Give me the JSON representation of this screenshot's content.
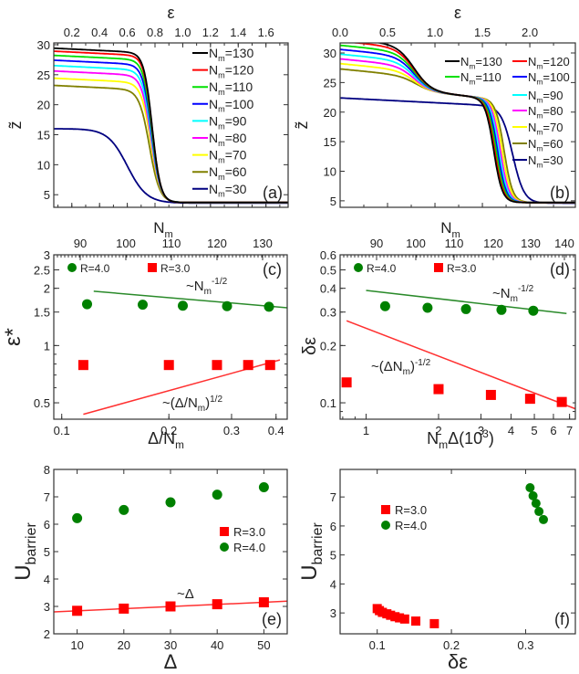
{
  "figure": {
    "panels": [
      "a",
      "b",
      "c",
      "d",
      "e",
      "f"
    ]
  },
  "chart_data": [
    {
      "id": "a",
      "type": "line",
      "panel_label": "(a)",
      "xlabel": "ε",
      "ylabel": "z̃",
      "xaxis_position": "top",
      "xlim": [
        0.07,
        1.76
      ],
      "ylim": [
        2.9,
        30.3
      ],
      "xticks": [
        0.2,
        0.4,
        0.6,
        0.8,
        1.0,
        1.2,
        1.4,
        1.6
      ],
      "xtick_labels": [
        "0.2",
        "0.4",
        "0.6",
        "0.8",
        "1.0",
        "1.2",
        "1.4",
        "1.6"
      ],
      "yticks": [
        5,
        10,
        15,
        20,
        25,
        30
      ],
      "ytick_labels": [
        "5",
        "10",
        "15",
        "20",
        "25",
        "30"
      ],
      "legend_position": "right",
      "series": [
        {
          "name": "N_m=130",
          "label_main": "N",
          "label_sub": "m",
          "label_rest": "=130",
          "color": "#000000",
          "plateau": 29.5,
          "low": 3.7,
          "center": 0.78,
          "width": 0.03
        },
        {
          "name": "N_m=120",
          "label_main": "N",
          "label_sub": "m",
          "label_rest": "=120",
          "color": "#ff0000",
          "plateau": 29.0,
          "low": 3.7,
          "center": 0.78,
          "width": 0.03
        },
        {
          "name": "N_m=110",
          "label_main": "N",
          "label_sub": "m",
          "label_rest": "=110",
          "color": "#00e000",
          "plateau": 28.3,
          "low": 3.7,
          "center": 0.778,
          "width": 0.031
        },
        {
          "name": "N_m=100",
          "label_main": "N",
          "label_sub": "m",
          "label_rest": "=100",
          "color": "#0000ff",
          "plateau": 27.5,
          "low": 3.7,
          "center": 0.776,
          "width": 0.032
        },
        {
          "name": "N_m=90",
          "label_main": "N",
          "label_sub": "m",
          "label_rest": "=90",
          "color": "#00ffff",
          "plateau": 26.6,
          "low": 3.7,
          "center": 0.774,
          "width": 0.033
        },
        {
          "name": "N_m=80",
          "label_main": "N",
          "label_sub": "m",
          "label_rest": "=80",
          "color": "#ff00ff",
          "plateau": 25.7,
          "low": 3.7,
          "center": 0.772,
          "width": 0.034
        },
        {
          "name": "N_m=70",
          "label_main": "N",
          "label_sub": "m",
          "label_rest": "=70",
          "color": "#ffff00",
          "plateau": 24.5,
          "low": 3.7,
          "center": 0.77,
          "width": 0.035
        },
        {
          "name": "N_m=60",
          "label_main": "N",
          "label_sub": "m",
          "label_rest": "=60",
          "color": "#808000",
          "plateau": 23.3,
          "low": 3.7,
          "center": 0.76,
          "width": 0.037
        },
        {
          "name": "N_m=30",
          "label_main": "N",
          "label_sub": "m",
          "label_rest": "=30",
          "color": "#000080",
          "plateau": 16.0,
          "low": 3.6,
          "center": 0.6,
          "width": 0.07
        }
      ]
    },
    {
      "id": "b",
      "type": "line",
      "panel_label": "(b)",
      "xlabel": "ε",
      "ylabel": "z̃",
      "xaxis_position": "top",
      "xlim": [
        0.0,
        2.48
      ],
      "ylim": [
        3.9,
        31.7
      ],
      "xticks": [
        0.0,
        0.5,
        1.0,
        1.5,
        2.0
      ],
      "xtick_labels": [
        "0.0",
        "0.5",
        "1.0",
        "1.5",
        "2.0"
      ],
      "yticks": [
        5,
        10,
        15,
        20,
        25,
        30
      ],
      "ytick_labels": [
        "5",
        "10",
        "15",
        "20",
        "25",
        "30"
      ],
      "legend_position": "right",
      "series": [
        {
          "name": "N_m=130",
          "label_main": "N",
          "label_sub": "m",
          "label_rest": "=130",
          "color": "#000000",
          "plateau": 31.0,
          "mid": 23.3,
          "low": 4.7,
          "c1": 0.78,
          "c2": 1.62
        },
        {
          "name": "N_m=120",
          "label_main": "N",
          "label_sub": "m",
          "label_rest": "=120",
          "color": "#ff0000",
          "plateau": 30.5,
          "mid": 23.3,
          "low": 4.7,
          "c1": 0.78,
          "c2": 1.63
        },
        {
          "name": "N_m=110",
          "label_main": "N",
          "label_sub": "m",
          "label_rest": "=110",
          "color": "#00e000",
          "plateau": 29.8,
          "mid": 23.3,
          "low": 4.7,
          "c1": 0.78,
          "c2": 1.645
        },
        {
          "name": "N_m=100",
          "label_main": "N",
          "label_sub": "m",
          "label_rest": "=100",
          "color": "#0000ff",
          "plateau": 29.1,
          "mid": 23.3,
          "low": 4.7,
          "c1": 0.78,
          "c2": 1.66
        },
        {
          "name": "N_m=90",
          "label_main": "N",
          "label_sub": "m",
          "label_rest": "=90",
          "color": "#00ffff",
          "plateau": 28.3,
          "mid": 23.3,
          "low": 4.7,
          "c1": 0.78,
          "c2": 1.675
        },
        {
          "name": "N_m=80",
          "label_main": "N",
          "label_sub": "m",
          "label_rest": "=80",
          "color": "#ff00ff",
          "plateau": 27.5,
          "mid": 23.3,
          "low": 4.7,
          "c1": 0.78,
          "c2": 1.69
        },
        {
          "name": "N_m=70",
          "label_main": "N",
          "label_sub": "m",
          "label_rest": "=70",
          "color": "#ffff00",
          "plateau": 26.7,
          "mid": 23.3,
          "low": 4.7,
          "c1": 0.78,
          "c2": 1.71
        },
        {
          "name": "N_m=60",
          "label_main": "N",
          "label_sub": "m",
          "label_rest": "=60",
          "color": "#808000",
          "plateau": 25.8,
          "mid": 23.3,
          "low": 4.7,
          "c1": 0.8,
          "c2": 1.73
        },
        {
          "name": "N_m=30",
          "label_main": "N",
          "label_sub": "m",
          "label_rest": "=30",
          "color": "#000080",
          "plateau": 22.4,
          "mid": 22.4,
          "low": 4.6,
          "c1": 0.8,
          "c2": 1.82
        }
      ]
    },
    {
      "id": "c",
      "type": "scatter",
      "panel_label": "(c)",
      "xlabel": "Δ/N_m",
      "ylabel": "ε*",
      "top_xlabel": "N_m",
      "xscale": "log",
      "yscale": "log",
      "xlim": [
        0.095,
        0.43
      ],
      "ylim": [
        0.41,
        3.0
      ],
      "xticks": [
        0.1,
        0.2,
        0.3,
        0.4
      ],
      "xtick_labels": [
        "0.1",
        "0.2",
        "0.3",
        "0.4"
      ],
      "yticks": [
        0.5,
        1,
        1.5,
        2,
        2.5,
        3
      ],
      "ytick_labels": [
        "0.5",
        "1",
        "1.5",
        "2",
        "2.5",
        "3"
      ],
      "top_xticks": [
        90,
        100,
        110,
        120,
        130
      ],
      "legend_position": "top-left",
      "series": [
        {
          "name": "R=4.0",
          "marker": "circle",
          "color": "#008000",
          "top_x": [
            91.5,
            103.7,
            112.5,
            122.2,
            131.4
          ],
          "y": [
            1.65,
            1.64,
            1.62,
            1.61,
            1.6
          ]
        },
        {
          "name": "R=3.0",
          "marker": "square",
          "color": "#ff0000",
          "x": [
            0.115,
            0.2,
            0.273,
            0.334,
            0.385
          ],
          "y": [
            0.79,
            0.79,
            0.79,
            0.79,
            0.79
          ]
        }
      ],
      "fits": [
        {
          "label": "~N_m^-1/2",
          "color": "#2a8a2a",
          "from": [
            0.123,
            1.93
          ],
          "to": [
            0.43,
            1.58
          ]
        },
        {
          "label": "~(Δ/N_m)^1/2",
          "color": "#ff3030",
          "from": [
            0.115,
            0.435
          ],
          "to": [
            0.41,
            0.84
          ]
        }
      ],
      "annotations": [
        "~N_m^-1/2",
        "~(Δ/N_m)^1/2"
      ]
    },
    {
      "id": "d",
      "type": "scatter",
      "panel_label": "(d)",
      "xlabel": "N_mΔ(10^3)",
      "ylabel": "δε",
      "top_xlabel": "N_m",
      "xscale": "log",
      "yscale": "log",
      "xlim": [
        0.78,
        7.4
      ],
      "ylim": [
        0.082,
        0.6
      ],
      "xticks": [
        1,
        2,
        3,
        4,
        5,
        6,
        7
      ],
      "xtick_labels": [
        "1",
        "2",
        "3",
        "4",
        "5",
        "6",
        "7"
      ],
      "yticks": [
        0.1,
        0.2,
        0.3,
        0.4,
        0.5,
        0.6
      ],
      "ytick_labels": [
        "0.1",
        "0.2",
        "0.3",
        "0.4",
        "0.5",
        "0.6"
      ],
      "top_xticks": [
        90,
        100,
        110,
        120,
        130,
        140
      ],
      "legend_position": "top-left",
      "series": [
        {
          "name": "R=4.0",
          "marker": "circle",
          "color": "#008000",
          "x": [
            1.2,
            1.8,
            2.6,
            3.65,
            4.95
          ],
          "y": [
            0.322,
            0.316,
            0.311,
            0.308,
            0.305
          ]
        },
        {
          "name": "R=3.0",
          "marker": "square",
          "color": "#ff0000",
          "x": [
            0.83,
            2.0,
            3.3,
            4.8,
            6.5
          ],
          "y": [
            0.128,
            0.118,
            0.11,
            0.105,
            0.101
          ]
        }
      ],
      "fits": [
        {
          "label": "~N_m^-1/2",
          "color": "#2a8a2a",
          "from": [
            1.0,
            0.39
          ],
          "to": [
            6.8,
            0.295
          ]
        },
        {
          "label": "~(ΔN_m)^-1/2",
          "color": "#ff3030",
          "from": [
            0.83,
            0.27
          ],
          "to": [
            7.4,
            0.093
          ]
        }
      ],
      "annotations": [
        "~N_m^-1/2",
        "~(ΔN_m)^-1/2"
      ]
    },
    {
      "id": "e",
      "type": "scatter",
      "panel_label": "(e)",
      "xlabel": "Δ",
      "ylabel": "U_barrier",
      "xlim": [
        5,
        55
      ],
      "ylim": [
        2,
        8
      ],
      "xticks": [
        10,
        20,
        30,
        40,
        50
      ],
      "xtick_labels": [
        "10",
        "20",
        "30",
        "40",
        "50"
      ],
      "yticks": [
        2,
        3,
        4,
        5,
        6,
        7,
        8
      ],
      "ytick_labels": [
        "2",
        "3",
        "4",
        "5",
        "6",
        "7",
        "8"
      ],
      "legend_position": "center-right",
      "series": [
        {
          "name": "R=3.0",
          "marker": "square",
          "color": "#ff0000",
          "x": [
            10,
            20,
            30,
            40,
            50
          ],
          "y": [
            2.84,
            2.92,
            3.0,
            3.08,
            3.15
          ]
        },
        {
          "name": "R=4.0",
          "marker": "circle",
          "color": "#008000",
          "x": [
            10,
            20,
            30,
            40,
            50
          ],
          "y": [
            6.22,
            6.52,
            6.8,
            7.08,
            7.35
          ]
        }
      ],
      "fits": [
        {
          "label": "~Δ",
          "color": "#ff3030",
          "from": [
            5,
            2.8
          ],
          "to": [
            55,
            3.19
          ]
        }
      ],
      "annotations": [
        "~Δ"
      ]
    },
    {
      "id": "f",
      "type": "scatter",
      "panel_label": "(f)",
      "xlabel": "δε",
      "ylabel": "U_barrier",
      "xlim": [
        0.05,
        0.367
      ],
      "ylim": [
        2.28,
        7.95
      ],
      "xticks": [
        0.1,
        0.2,
        0.3
      ],
      "xtick_labels": [
        "0.1",
        "0.2",
        "0.3"
      ],
      "yticks": [
        3,
        4,
        5,
        6,
        7
      ],
      "ytick_labels": [
        "3",
        "4",
        "5",
        "6",
        "7"
      ],
      "legend_position": "upper-left",
      "series": [
        {
          "name": "R=3.0",
          "marker": "square",
          "color": "#ff0000",
          "x": [
            0.1,
            0.103,
            0.107,
            0.113,
            0.118,
            0.124,
            0.13,
            0.137,
            0.152,
            0.177
          ],
          "y": [
            3.15,
            3.08,
            3.02,
            2.97,
            2.92,
            2.87,
            2.83,
            2.79,
            2.72,
            2.63
          ]
        },
        {
          "name": "R=4.0",
          "marker": "circle",
          "color": "#008000",
          "x": [
            0.306,
            0.31,
            0.314,
            0.318,
            0.324
          ],
          "y": [
            7.32,
            7.04,
            6.78,
            6.5,
            6.22
          ]
        }
      ]
    }
  ]
}
